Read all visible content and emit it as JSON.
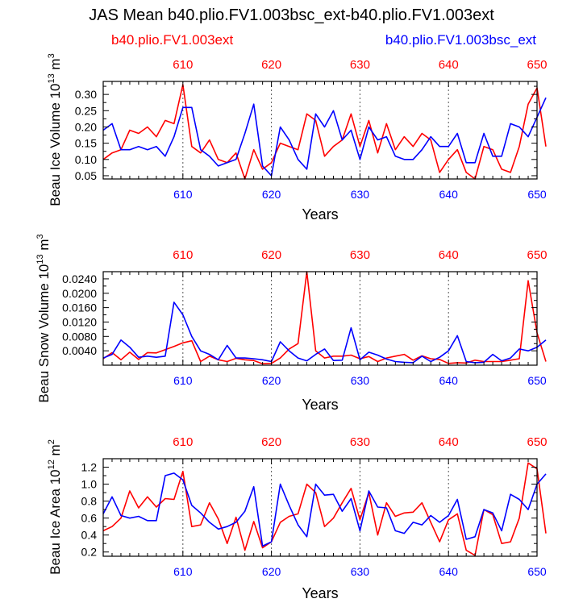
{
  "title": "JAS Mean b40.plio.FV1.003bsc_ext-b40.plio.FV1.003ext",
  "legend": {
    "red": "b40.plio.FV1.003ext",
    "blue": "b40.plio.FV1.003bsc_ext"
  },
  "colors": {
    "series_a": "#ff0000",
    "series_b": "#0000ff",
    "axis": "#000000",
    "grid": "#555555"
  },
  "chart_data": [
    {
      "type": "line",
      "ylabel": "Beau Ice Volume 10^13 m^3",
      "ylabel_base": "Beau Ice Volume 10",
      "ylabel_exp": "13",
      "ylabel_unit": " m",
      "ylabel_unit_exp": "3",
      "xlabel": "Years",
      "xlim": [
        601,
        650
      ],
      "ylim": [
        0.04,
        0.34
      ],
      "yticks": [
        0.05,
        0.1,
        0.15,
        0.2,
        0.25,
        0.3
      ],
      "ytick_labels": [
        "0.05",
        "0.10",
        "0.15",
        "0.20",
        "0.25",
        "0.30"
      ],
      "xticks": [
        610,
        620,
        630,
        640,
        650
      ],
      "xtick_labels": [
        "610",
        "620",
        "630",
        "640",
        "650"
      ],
      "x_start": 601,
      "series": [
        {
          "name": "b40.plio.FV1.003ext",
          "color": "#ff0000",
          "values": [
            0.1,
            0.12,
            0.13,
            0.19,
            0.18,
            0.2,
            0.17,
            0.22,
            0.21,
            0.33,
            0.14,
            0.12,
            0.16,
            0.1,
            0.09,
            0.12,
            0.04,
            0.13,
            0.07,
            0.09,
            0.15,
            0.14,
            0.13,
            0.24,
            0.22,
            0.11,
            0.14,
            0.16,
            0.24,
            0.14,
            0.22,
            0.12,
            0.21,
            0.13,
            0.17,
            0.14,
            0.18,
            0.16,
            0.06,
            0.1,
            0.13,
            0.06,
            0.04,
            0.14,
            0.13,
            0.07,
            0.06,
            0.14,
            0.27,
            0.32,
            0.14
          ]
        },
        {
          "name": "b40.plio.FV1.003bsc_ext",
          "color": "#0000ff",
          "values": [
            0.19,
            0.21,
            0.13,
            0.13,
            0.14,
            0.13,
            0.14,
            0.11,
            0.17,
            0.26,
            0.26,
            0.13,
            0.11,
            0.08,
            0.09,
            0.1,
            0.18,
            0.27,
            0.08,
            0.05,
            0.2,
            0.16,
            0.1,
            0.07,
            0.24,
            0.2,
            0.25,
            0.16,
            0.19,
            0.1,
            0.2,
            0.16,
            0.17,
            0.11,
            0.1,
            0.1,
            0.13,
            0.17,
            0.14,
            0.14,
            0.18,
            0.09,
            0.09,
            0.18,
            0.11,
            0.11,
            0.21,
            0.2,
            0.17,
            0.23,
            0.29
          ]
        }
      ]
    },
    {
      "type": "line",
      "ylabel": "Beau Snow Volume 10^13 m^3",
      "ylabel_base": "Beau Snow Volume 10",
      "ylabel_exp": "13",
      "ylabel_unit": " m",
      "ylabel_unit_exp": "3",
      "xlabel": "Years",
      "xlim": [
        601,
        650
      ],
      "ylim": [
        0.0,
        0.026
      ],
      "yticks": [
        0.004,
        0.008,
        0.012,
        0.016,
        0.02,
        0.024
      ],
      "ytick_labels": [
        "0.0040",
        "0.0080",
        "0.0120",
        "0.0160",
        "0.0200",
        "0.0240"
      ],
      "xticks": [
        610,
        620,
        630,
        640,
        650
      ],
      "xtick_labels": [
        "610",
        "620",
        "630",
        "640",
        "650"
      ],
      "x_start": 601,
      "series": [
        {
          "name": "b40.plio.FV1.003ext",
          "color": "#ff0000",
          "values": [
            0.0018,
            0.0035,
            0.0015,
            0.0036,
            0.0016,
            0.0035,
            0.0034,
            0.0043,
            0.0052,
            0.0062,
            0.0068,
            0.001,
            0.0025,
            0.0015,
            0.001,
            0.0019,
            0.0015,
            0.0013,
            0.0004,
            0.0005,
            0.002,
            0.0045,
            0.006,
            0.026,
            0.004,
            0.002,
            0.0025,
            0.0025,
            0.0028,
            0.0018,
            0.0024,
            0.001,
            0.002,
            0.0025,
            0.003,
            0.0014,
            0.0026,
            0.0018,
            0.0016,
            0.0005,
            0.0007,
            0.0006,
            0.0014,
            0.001,
            0.001,
            0.001,
            0.0014,
            0.0018,
            0.0235,
            0.009,
            0.001
          ]
        },
        {
          "name": "b40.plio.FV1.003bsc_ext",
          "color": "#0000ff",
          "values": [
            0.002,
            0.003,
            0.007,
            0.005,
            0.0022,
            0.0025,
            0.0022,
            0.0025,
            0.0175,
            0.014,
            0.008,
            0.004,
            0.003,
            0.0015,
            0.0055,
            0.002,
            0.002,
            0.0018,
            0.0015,
            0.001,
            0.0065,
            0.004,
            0.002,
            0.0012,
            0.003,
            0.0045,
            0.0013,
            0.0014,
            0.0104,
            0.0015,
            0.0036,
            0.0028,
            0.0017,
            0.001,
            0.0008,
            0.0007,
            0.0025,
            0.001,
            0.0022,
            0.004,
            0.0082,
            0.001,
            0.0007,
            0.0008,
            0.003,
            0.0012,
            0.002,
            0.0045,
            0.004,
            0.005,
            0.007
          ]
        }
      ]
    },
    {
      "type": "line",
      "ylabel": "Beau Ice Area 10^12 m^2",
      "ylabel_base": "Beau Ice Area 10",
      "ylabel_exp": "12",
      "ylabel_unit": " m",
      "ylabel_unit_exp": "2",
      "xlabel": "Years",
      "xlim": [
        601,
        650
      ],
      "ylim": [
        0.15,
        1.3
      ],
      "yticks": [
        0.2,
        0.4,
        0.6,
        0.8,
        1.0,
        1.2
      ],
      "ytick_labels": [
        "0.2",
        "0.4",
        "0.6",
        "0.8",
        "1.0",
        "1.2"
      ],
      "xticks": [
        610,
        620,
        630,
        640,
        650
      ],
      "xtick_labels": [
        "610",
        "620",
        "630",
        "640",
        "650"
      ],
      "x_start": 601,
      "series": [
        {
          "name": "b40.plio.FV1.003ext",
          "color": "#ff0000",
          "values": [
            0.45,
            0.5,
            0.6,
            0.92,
            0.72,
            0.85,
            0.73,
            0.83,
            0.82,
            1.15,
            0.5,
            0.52,
            0.78,
            0.59,
            0.3,
            0.61,
            0.22,
            0.56,
            0.25,
            0.32,
            0.55,
            0.62,
            0.65,
            1.0,
            0.9,
            0.5,
            0.6,
            0.78,
            0.95,
            0.58,
            0.9,
            0.4,
            0.78,
            0.62,
            0.66,
            0.67,
            0.78,
            0.55,
            0.32,
            0.58,
            0.65,
            0.22,
            0.16,
            0.7,
            0.64,
            0.3,
            0.32,
            0.6,
            1.25,
            1.18,
            0.42
          ]
        },
        {
          "name": "b40.plio.FV1.003bsc_ext",
          "color": "#0000ff",
          "values": [
            0.65,
            0.85,
            0.63,
            0.6,
            0.62,
            0.57,
            0.57,
            1.1,
            1.13,
            1.05,
            0.75,
            0.66,
            0.55,
            0.47,
            0.5,
            0.55,
            0.68,
            0.97,
            0.27,
            0.32,
            1.0,
            0.75,
            0.52,
            0.38,
            1.0,
            0.87,
            0.88,
            0.68,
            0.83,
            0.45,
            0.92,
            0.73,
            0.72,
            0.45,
            0.42,
            0.55,
            0.52,
            0.63,
            0.55,
            0.63,
            0.82,
            0.35,
            0.38,
            0.7,
            0.66,
            0.45,
            0.88,
            0.82,
            0.7,
            1.0,
            1.12
          ]
        }
      ]
    }
  ]
}
